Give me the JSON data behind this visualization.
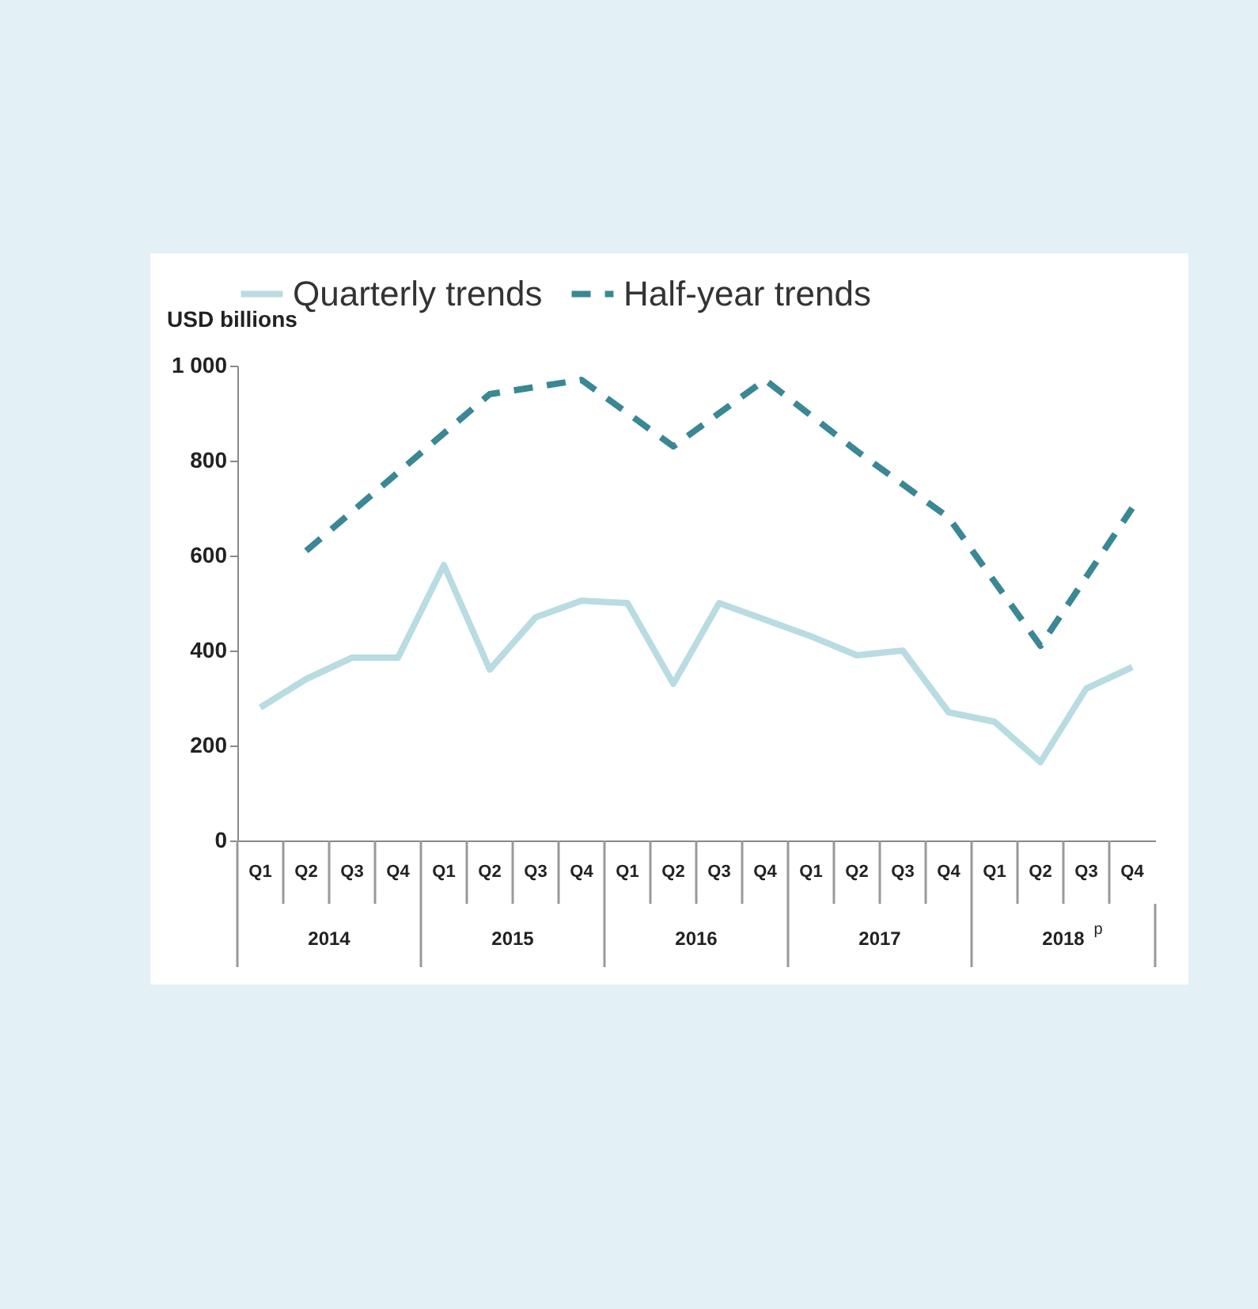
{
  "chart_data": {
    "type": "line",
    "ylabel": "USD billions",
    "categories": [
      "Q1",
      "Q2",
      "Q3",
      "Q4",
      "Q1",
      "Q2",
      "Q3",
      "Q4",
      "Q1",
      "Q2",
      "Q3",
      "Q4",
      "Q1",
      "Q2",
      "Q3",
      "Q4",
      "Q1",
      "Q2",
      "Q3",
      "Q4"
    ],
    "series": [
      {
        "name": "Quarterly trends",
        "color": "#b9dbe2",
        "line_style": "solid",
        "values": [
          280,
          340,
          385,
          385,
          580,
          360,
          470,
          505,
          500,
          330,
          500,
          465,
          430,
          390,
          400,
          270,
          250,
          165,
          320,
          365
        ]
      },
      {
        "name": "Half-year trends",
        "color": "#3a8795",
        "line_style": "dashed",
        "values": [
          null,
          610,
          null,
          null,
          null,
          940,
          null,
          970,
          null,
          830,
          null,
          970,
          null,
          820,
          null,
          680,
          null,
          410,
          null,
          700
        ]
      }
    ],
    "ylim": [
      0,
      1000
    ],
    "yticks": [
      0,
      200,
      400,
      600,
      800,
      {
        "value": 1000,
        "label": "1 000"
      }
    ],
    "grid": false,
    "legend": "top",
    "marker": "none",
    "annotations": [
      "2014",
      "2015",
      "2016",
      "2017",
      "2018 $^{p}$"
    ]
  }
}
